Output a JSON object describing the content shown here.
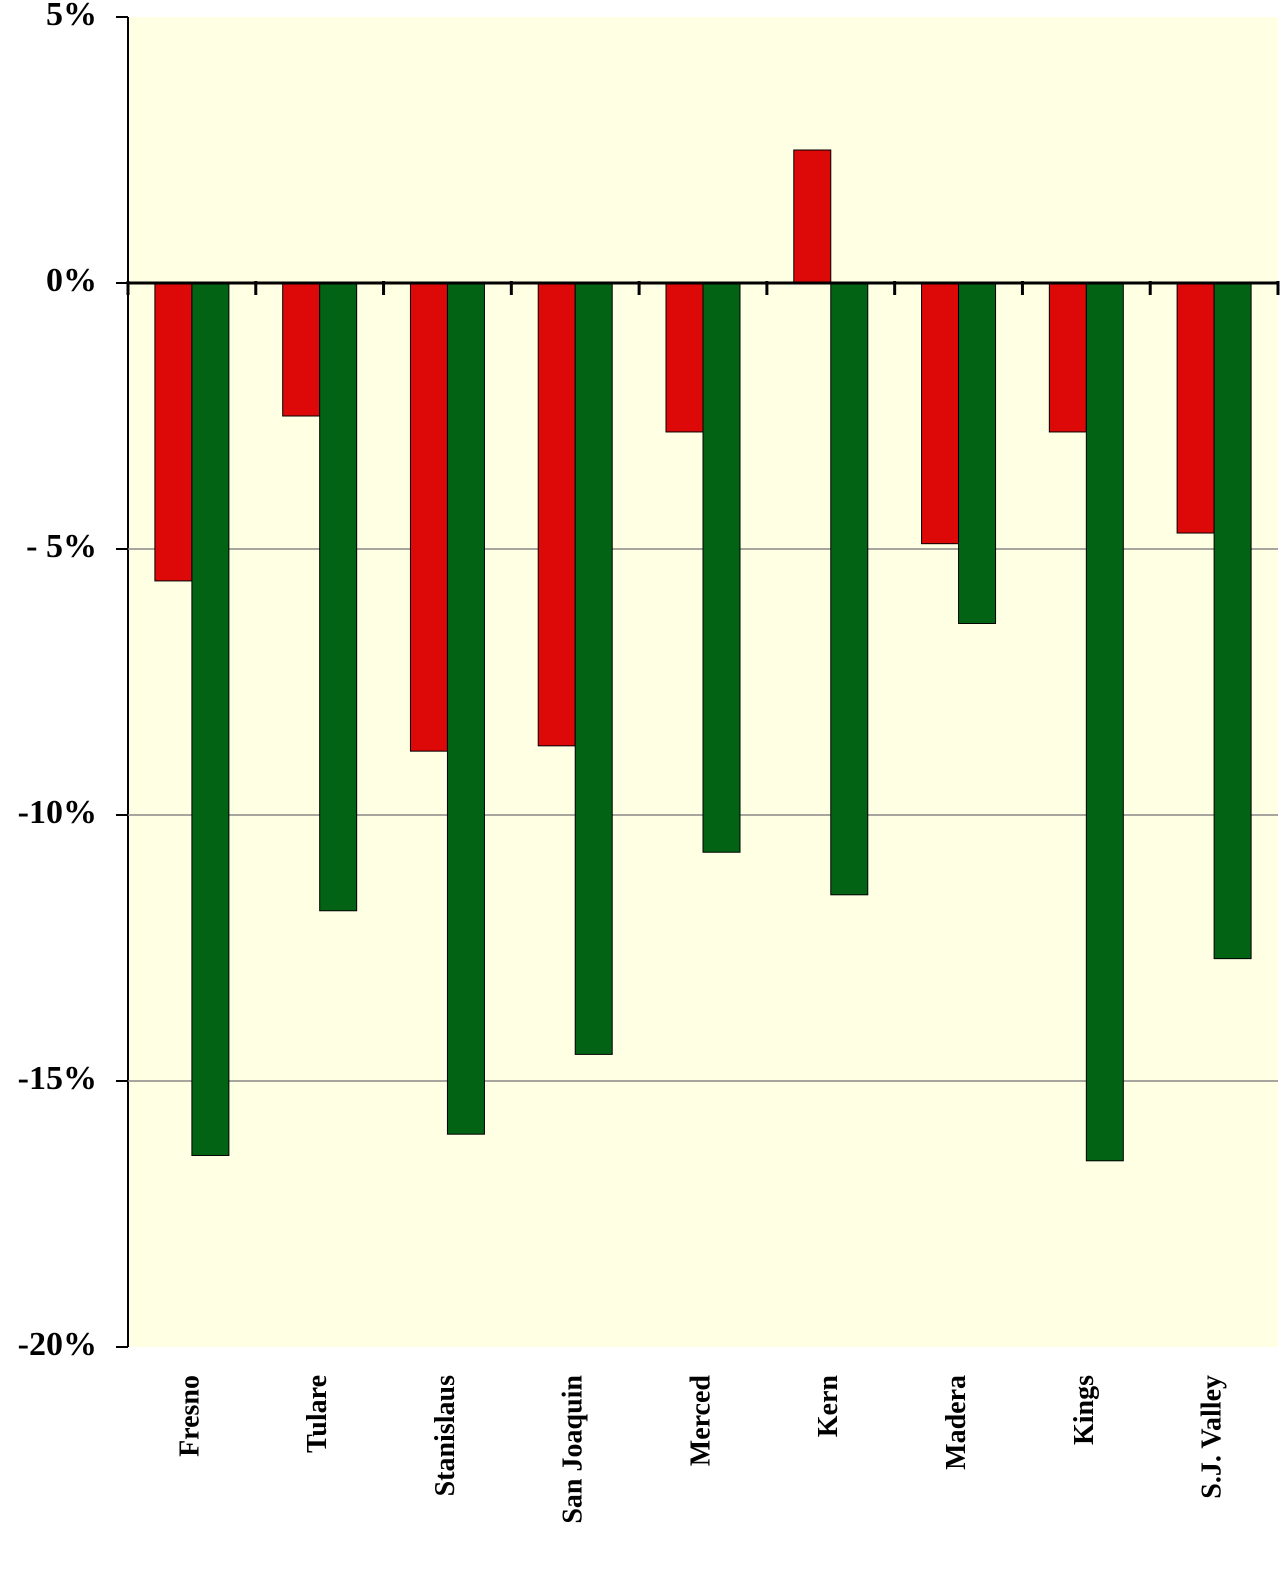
{
  "chart_data": {
    "type": "bar",
    "categories": [
      "Fresno",
      "Tulare",
      "Stanislaus",
      "San Joaquin",
      "Merced",
      "Kern",
      "Madera",
      "Kings",
      "S.J. Valley"
    ],
    "series": [
      {
        "color": "#dd0808",
        "values": [
          -5.6,
          -2.5,
          -8.8,
          -8.7,
          -2.8,
          2.5,
          -4.9,
          -2.8,
          -4.7
        ]
      },
      {
        "color": "#036315",
        "values": [
          -16.4,
          -11.8,
          -16.0,
          -14.5,
          -10.7,
          -11.5,
          -6.4,
          -16.5,
          -12.7
        ]
      }
    ],
    "ylim": [
      -20,
      5
    ],
    "yticks": [
      {
        "value": 5,
        "label": "5%"
      },
      {
        "value": 0,
        "label": "0%"
      },
      {
        "value": -5,
        "label": "- 5%"
      },
      {
        "value": -10,
        "label": "-10%"
      },
      {
        "value": -15,
        "label": "-15%"
      },
      {
        "value": -20,
        "label": "-20%"
      }
    ],
    "grid": true
  }
}
